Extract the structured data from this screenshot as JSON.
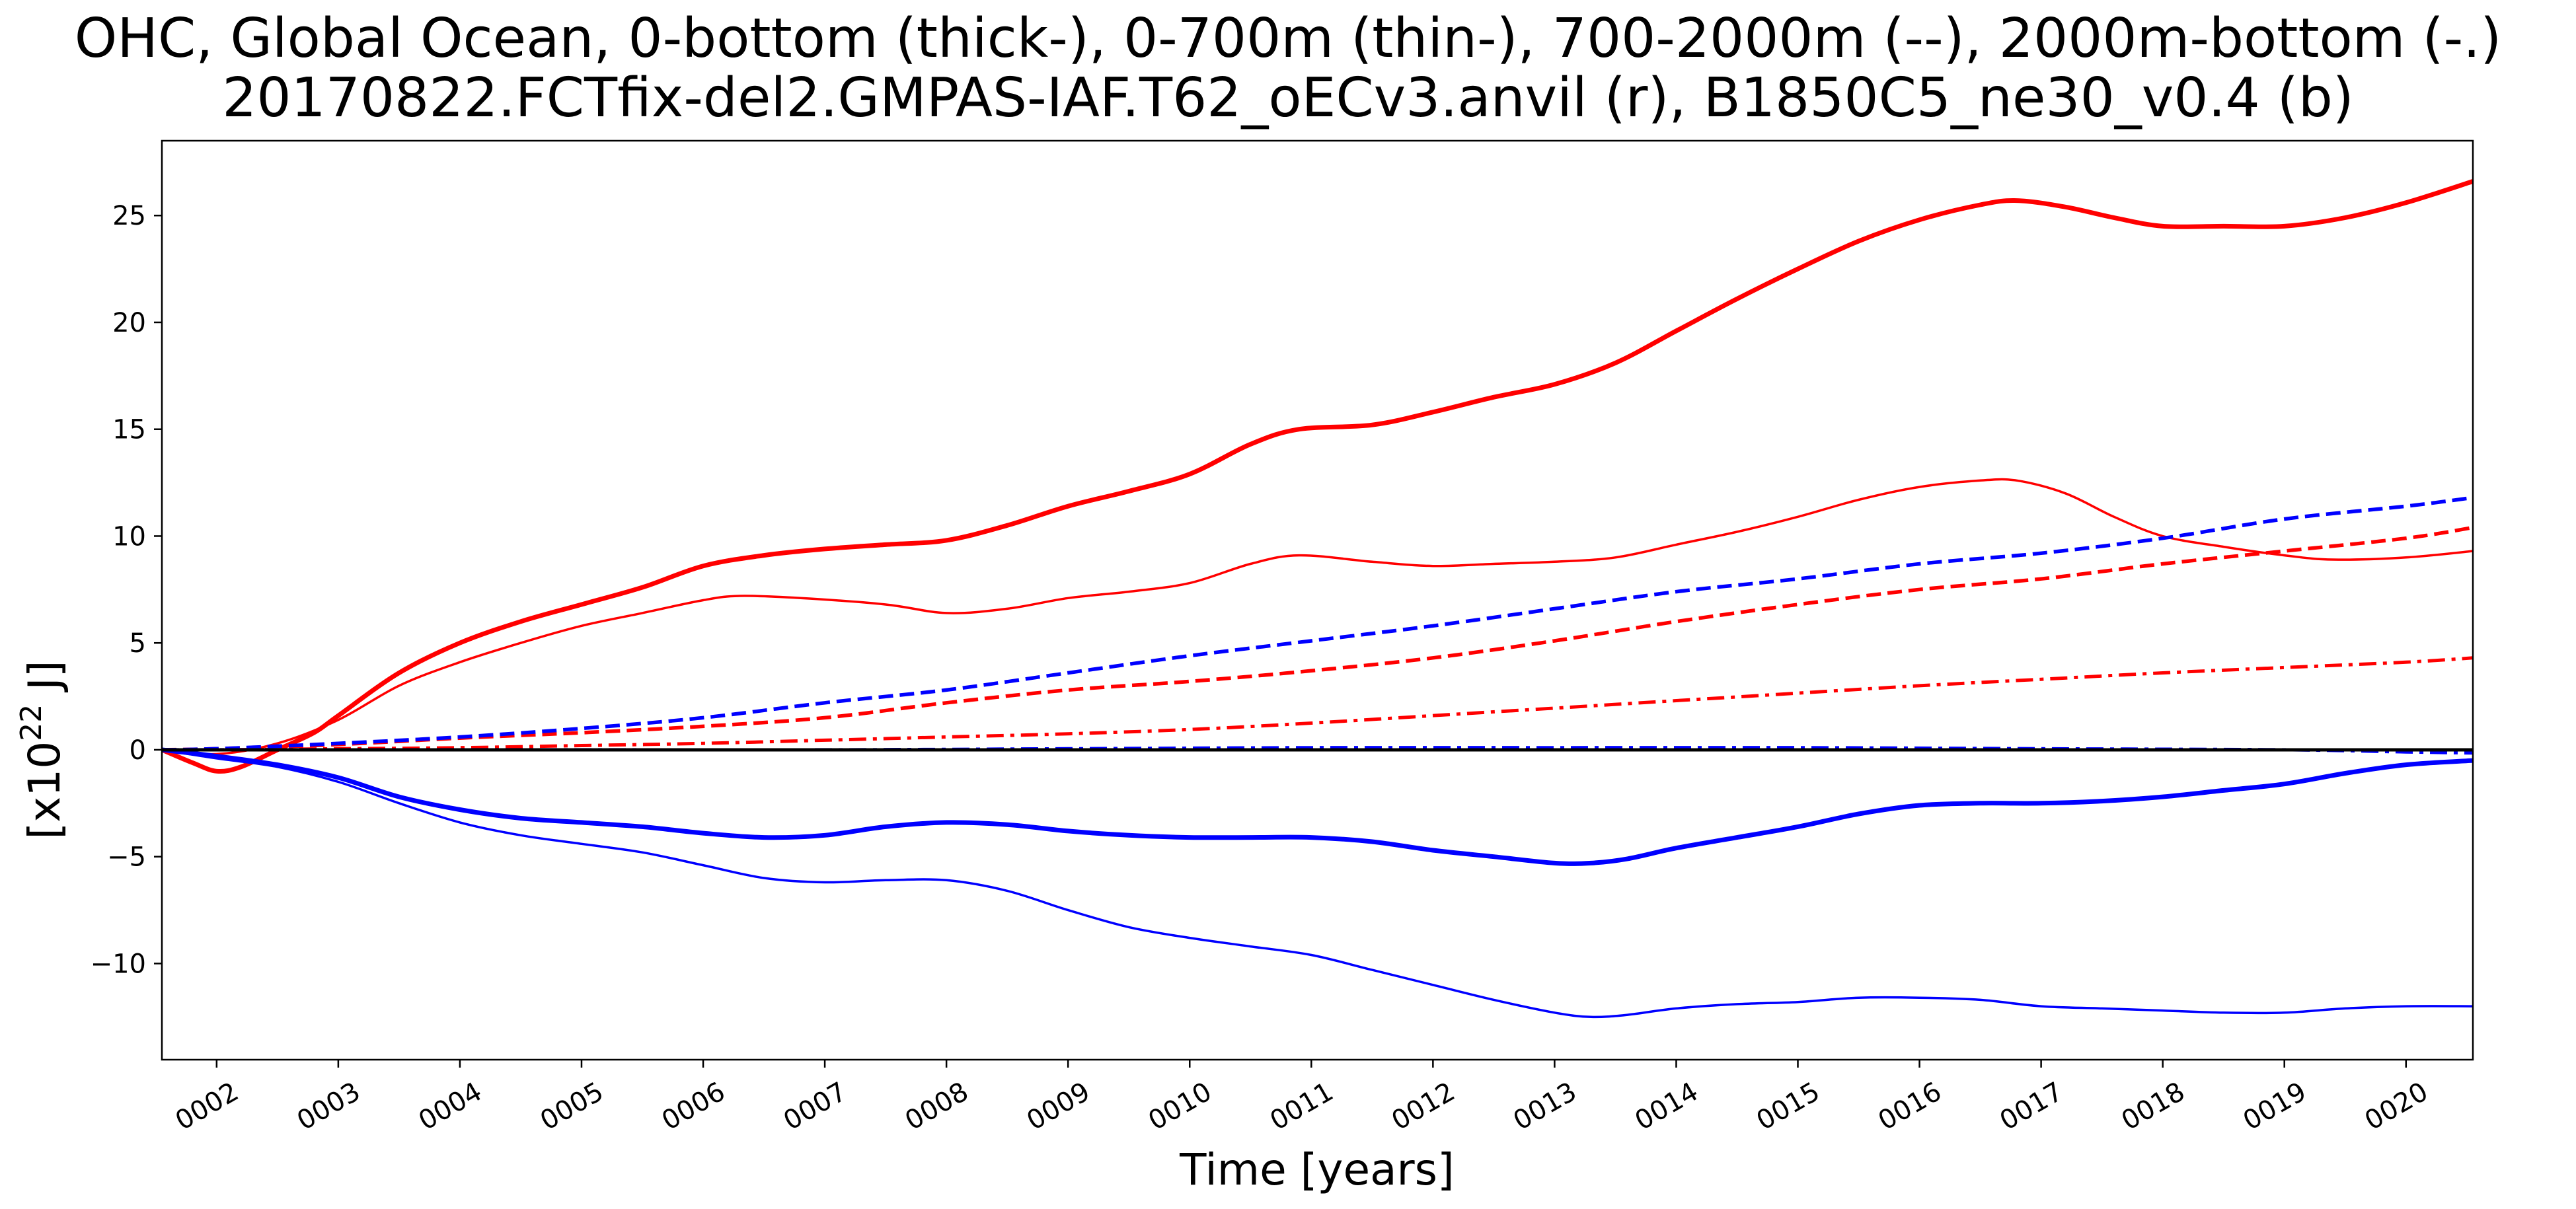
{
  "chart_data": {
    "type": "line",
    "title": "OHC, Global Ocean, 0-bottom (thick-), 0-700m (thin-), 700-2000m (--), 2000m-bottom (-.)",
    "subtitle": "20170822.FCTfix-del2.GMPAS-IAF.T62_oECv3.anvil (r), B1850C5_ne30_v0.4 (b)",
    "xlabel": "Time [years]",
    "ylabel_parts": {
      "prefix": "[x10",
      "exponent": "22",
      "suffix": " J]"
    },
    "xlim": [
      1.55,
      20.55
    ],
    "ylim": [
      -14.5,
      28.5
    ],
    "grid": false,
    "x_ticks": [
      {
        "value": 2,
        "label": "0002"
      },
      {
        "value": 3,
        "label": "0003"
      },
      {
        "value": 4,
        "label": "0004"
      },
      {
        "value": 5,
        "label": "0005"
      },
      {
        "value": 6,
        "label": "0006"
      },
      {
        "value": 7,
        "label": "0007"
      },
      {
        "value": 8,
        "label": "0008"
      },
      {
        "value": 9,
        "label": "0009"
      },
      {
        "value": 10,
        "label": "0010"
      },
      {
        "value": 11,
        "label": "0011"
      },
      {
        "value": 12,
        "label": "0012"
      },
      {
        "value": 13,
        "label": "0013"
      },
      {
        "value": 14,
        "label": "0014"
      },
      {
        "value": 15,
        "label": "0015"
      },
      {
        "value": 16,
        "label": "0016"
      },
      {
        "value": 17,
        "label": "0017"
      },
      {
        "value": 18,
        "label": "0018"
      },
      {
        "value": 19,
        "label": "0019"
      },
      {
        "value": 20,
        "label": "0020"
      }
    ],
    "y_ticks": [
      {
        "value": -10,
        "label": "−10"
      },
      {
        "value": -5,
        "label": "−5"
      },
      {
        "value": 0,
        "label": "0"
      },
      {
        "value": 5,
        "label": "5"
      },
      {
        "value": 10,
        "label": "10"
      },
      {
        "value": 15,
        "label": "15"
      },
      {
        "value": 20,
        "label": "20"
      },
      {
        "value": 25,
        "label": "25"
      }
    ],
    "zero_line": {
      "y": 0,
      "color": "#000000"
    },
    "series": [
      {
        "color": "#ff0000",
        "style": "thick-solid",
        "x": [
          1.55,
          1.8,
          2.0,
          2.2,
          2.5,
          2.8,
          3.0,
          3.5,
          4.0,
          4.5,
          5.0,
          5.5,
          6.0,
          6.5,
          7.0,
          7.5,
          8.0,
          8.5,
          9.0,
          9.5,
          10.0,
          10.5,
          10.9,
          11.5,
          12.0,
          12.5,
          13.0,
          13.5,
          14.0,
          14.5,
          15.0,
          15.5,
          16.0,
          16.5,
          16.8,
          17.2,
          17.6,
          18.0,
          18.5,
          19.0,
          19.5,
          20.0,
          20.55
        ],
        "values": [
          0,
          -0.6,
          -1.0,
          -0.8,
          0.0,
          0.8,
          1.6,
          3.6,
          5.0,
          6.0,
          6.8,
          7.6,
          8.6,
          9.1,
          9.4,
          9.6,
          9.8,
          10.5,
          11.4,
          12.1,
          12.9,
          14.3,
          15.0,
          15.2,
          15.8,
          16.5,
          17.1,
          18.1,
          19.6,
          21.1,
          22.5,
          23.8,
          24.8,
          25.5,
          25.7,
          25.4,
          24.9,
          24.5,
          24.5,
          24.5,
          24.9,
          25.6,
          26.6
        ]
      },
      {
        "color": "#ff0000",
        "style": "thin-solid",
        "x": [
          1.55,
          2.0,
          2.5,
          3.0,
          3.5,
          4.0,
          4.5,
          5.0,
          5.5,
          6.0,
          6.3,
          6.8,
          7.5,
          8.0,
          8.5,
          9.0,
          9.5,
          10.0,
          10.5,
          10.9,
          11.5,
          12.0,
          12.5,
          13.0,
          13.5,
          14.0,
          14.5,
          15.0,
          15.5,
          16.0,
          16.5,
          16.8,
          17.2,
          17.6,
          18.0,
          18.5,
          19.0,
          19.4,
          20.0,
          20.55
        ],
        "values": [
          0,
          -0.2,
          0.3,
          1.4,
          3.0,
          4.1,
          5.0,
          5.8,
          6.4,
          7.0,
          7.2,
          7.1,
          6.8,
          6.4,
          6.6,
          7.1,
          7.4,
          7.8,
          8.7,
          9.1,
          8.8,
          8.6,
          8.7,
          8.8,
          9.0,
          9.6,
          10.2,
          10.9,
          11.7,
          12.3,
          12.6,
          12.6,
          12.0,
          10.9,
          10.0,
          9.5,
          9.1,
          8.9,
          9.0,
          9.3
        ]
      },
      {
        "color": "#ff0000",
        "style": "dashed",
        "x": [
          1.55,
          2.0,
          3.0,
          4.0,
          5.0,
          6.0,
          7.0,
          8.0,
          9.0,
          10.0,
          11.0,
          12.0,
          13.0,
          14.0,
          15.0,
          16.0,
          17.0,
          18.0,
          19.0,
          20.0,
          20.55
        ],
        "values": [
          0,
          0.05,
          0.25,
          0.55,
          0.8,
          1.1,
          1.5,
          2.2,
          2.8,
          3.2,
          3.7,
          4.3,
          5.1,
          6.0,
          6.8,
          7.5,
          8.0,
          8.7,
          9.3,
          9.9,
          10.4
        ]
      },
      {
        "color": "#ff0000",
        "style": "dashdot",
        "x": [
          1.55,
          2.0,
          3.0,
          4.0,
          5.0,
          6.0,
          7.0,
          8.0,
          9.0,
          10.0,
          11.0,
          12.0,
          13.0,
          14.0,
          15.0,
          16.0,
          17.0,
          18.0,
          19.0,
          20.0,
          20.55
        ],
        "values": [
          0,
          0.0,
          0.05,
          0.1,
          0.2,
          0.3,
          0.45,
          0.6,
          0.75,
          0.95,
          1.25,
          1.6,
          1.95,
          2.3,
          2.65,
          3.0,
          3.3,
          3.6,
          3.85,
          4.1,
          4.3
        ]
      },
      {
        "color": "#0000ff",
        "style": "thick-solid",
        "x": [
          1.55,
          2.0,
          2.5,
          3.0,
          3.5,
          4.0,
          4.5,
          5.0,
          5.5,
          6.0,
          6.5,
          7.0,
          7.5,
          8.0,
          8.5,
          9.0,
          9.5,
          10.0,
          10.5,
          11.0,
          11.5,
          12.0,
          12.5,
          13.0,
          13.3,
          13.6,
          14.0,
          14.5,
          15.0,
          15.5,
          16.0,
          16.5,
          17.0,
          17.5,
          18.0,
          18.5,
          19.0,
          19.5,
          20.0,
          20.55
        ],
        "values": [
          0,
          -0.3,
          -0.7,
          -1.3,
          -2.2,
          -2.8,
          -3.2,
          -3.4,
          -3.6,
          -3.9,
          -4.1,
          -4.0,
          -3.6,
          -3.4,
          -3.5,
          -3.8,
          -4.0,
          -4.1,
          -4.1,
          -4.1,
          -4.3,
          -4.7,
          -5.0,
          -5.3,
          -5.3,
          -5.1,
          -4.6,
          -4.1,
          -3.6,
          -3.0,
          -2.6,
          -2.5,
          -2.5,
          -2.4,
          -2.2,
          -1.9,
          -1.6,
          -1.1,
          -0.7,
          -0.5
        ]
      },
      {
        "color": "#0000ff",
        "style": "thin-solid",
        "x": [
          1.55,
          2.0,
          2.5,
          3.0,
          3.5,
          4.0,
          4.5,
          5.0,
          5.5,
          6.0,
          6.5,
          7.0,
          7.5,
          8.0,
          8.5,
          9.0,
          9.5,
          10.0,
          10.5,
          11.0,
          11.5,
          12.0,
          12.5,
          13.0,
          13.3,
          13.6,
          14.0,
          14.5,
          15.0,
          15.5,
          16.0,
          16.5,
          17.0,
          17.5,
          18.0,
          18.5,
          19.0,
          19.5,
          20.0,
          20.55
        ],
        "values": [
          0,
          -0.4,
          -0.8,
          -1.5,
          -2.5,
          -3.4,
          -4.0,
          -4.4,
          -4.8,
          -5.4,
          -6.0,
          -6.2,
          -6.1,
          -6.1,
          -6.6,
          -7.5,
          -8.3,
          -8.8,
          -9.2,
          -9.6,
          -10.3,
          -11.0,
          -11.7,
          -12.3,
          -12.5,
          -12.4,
          -12.1,
          -11.9,
          -11.8,
          -11.6,
          -11.6,
          -11.7,
          -12.0,
          -12.1,
          -12.2,
          -12.3,
          -12.3,
          -12.1,
          -12.0,
          -12.0
        ]
      },
      {
        "color": "#0000ff",
        "style": "dashed",
        "x": [
          1.55,
          2.0,
          3.0,
          4.0,
          5.0,
          6.0,
          7.0,
          8.0,
          9.0,
          10.0,
          11.0,
          12.0,
          13.0,
          14.0,
          15.0,
          16.0,
          17.0,
          18.0,
          19.0,
          20.0,
          20.55
        ],
        "values": [
          0,
          0.05,
          0.3,
          0.6,
          1.0,
          1.5,
          2.2,
          2.8,
          3.6,
          4.4,
          5.1,
          5.8,
          6.6,
          7.4,
          8.0,
          8.7,
          9.2,
          9.9,
          10.8,
          11.4,
          11.8
        ]
      },
      {
        "color": "#0000ff",
        "style": "dashdot",
        "x": [
          1.55,
          3.0,
          5.0,
          7.0,
          9.0,
          11.0,
          13.0,
          15.0,
          17.0,
          19.0,
          20.0,
          20.55
        ],
        "values": [
          0,
          0.0,
          0.0,
          0.0,
          0.05,
          0.1,
          0.1,
          0.1,
          0.05,
          0.0,
          -0.1,
          -0.15
        ]
      }
    ]
  }
}
